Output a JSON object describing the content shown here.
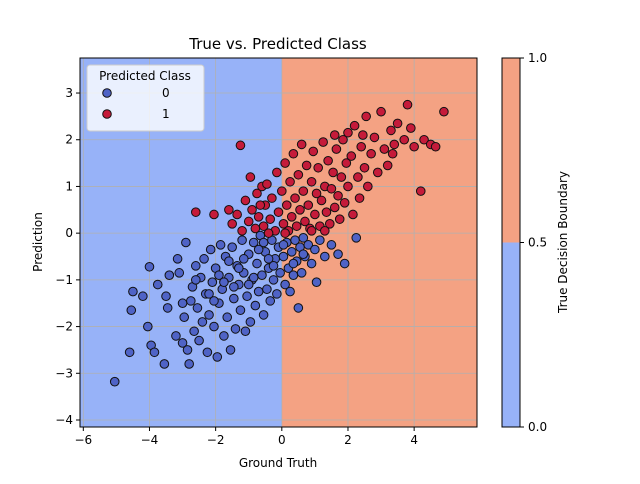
{
  "chart_data": {
    "type": "scatter",
    "title": "True vs. Predicted Class",
    "xlabel": "Ground Truth",
    "ylabel": "Prediction",
    "xlim": [
      -6.1,
      5.9
    ],
    "ylim": [
      -4.15,
      3.75
    ],
    "xticks": [
      -6,
      -4,
      -2,
      0,
      2,
      4
    ],
    "yticks": [
      -4,
      -3,
      -2,
      -1,
      0,
      1,
      2,
      3
    ],
    "grid": true,
    "background_regions": [
      {
        "x_from": -6.1,
        "x_to": 0,
        "class": 0,
        "color": "#97b2f8"
      },
      {
        "x_from": 0,
        "x_to": 5.9,
        "class": 1,
        "color": "#f4a283"
      }
    ],
    "legend": {
      "title": "Predicted Class",
      "placement": "top-left",
      "entries": [
        {
          "label": "0",
          "color": "#4f63c6"
        },
        {
          "label": "1",
          "color": "#c51b3a"
        }
      ]
    },
    "colorbar": {
      "label": "True Decision Boundary",
      "ticks": [
        "0.0",
        "0.5",
        "1.0"
      ],
      "tick_values": [
        0,
        0.5,
        1
      ],
      "bands": [
        {
          "from": 0,
          "to": 0.5,
          "color": "#97b2f8"
        },
        {
          "from": 0.5,
          "to": 1,
          "color": "#f4a283"
        }
      ]
    },
    "series": [
      {
        "name": "0",
        "color": "#4f63c6",
        "points": [
          [
            -5.05,
            -3.18
          ],
          [
            -4.6,
            -2.55
          ],
          [
            -4.55,
            -1.65
          ],
          [
            -4.5,
            -1.25
          ],
          [
            -4.2,
            -1.35
          ],
          [
            -4.05,
            -2.0
          ],
          [
            -4.0,
            -0.72
          ],
          [
            -3.95,
            -2.4
          ],
          [
            -3.85,
            -2.55
          ],
          [
            -3.75,
            -1.1
          ],
          [
            -3.55,
            -2.8
          ],
          [
            -3.45,
            -1.6
          ],
          [
            -3.5,
            -1.35
          ],
          [
            -3.2,
            -2.2
          ],
          [
            -3.1,
            -0.85
          ],
          [
            -3.15,
            -0.55
          ],
          [
            -3.0,
            -2.35
          ],
          [
            -2.95,
            -1.8
          ],
          [
            -2.85,
            -2.5
          ],
          [
            -2.9,
            -0.2
          ],
          [
            -2.8,
            -2.8
          ],
          [
            -2.75,
            -1.45
          ],
          [
            -2.7,
            -1.15
          ],
          [
            -2.65,
            -2.1
          ],
          [
            -2.6,
            -0.7
          ],
          [
            -2.55,
            -1.6
          ],
          [
            -2.5,
            -2.3
          ],
          [
            -2.45,
            -0.95
          ],
          [
            -2.4,
            -1.9
          ],
          [
            -2.35,
            -0.55
          ],
          [
            -2.3,
            -1.3
          ],
          [
            -2.25,
            -2.55
          ],
          [
            -2.2,
            -1.75
          ],
          [
            -2.15,
            -0.35
          ],
          [
            -2.1,
            -1.05
          ],
          [
            -2.05,
            -2.0
          ],
          [
            -2.0,
            -0.75
          ],
          [
            -1.95,
            -2.65
          ],
          [
            -1.9,
            -1.5
          ],
          [
            -1.85,
            -0.25
          ],
          [
            -1.8,
            -1.2
          ],
          [
            -1.75,
            -2.2
          ],
          [
            -1.7,
            -0.5
          ],
          [
            -1.65,
            -1.8
          ],
          [
            -1.6,
            -0.95
          ],
          [
            -1.55,
            -2.5
          ],
          [
            -1.5,
            -0.3
          ],
          [
            -1.45,
            -1.4
          ],
          [
            -1.4,
            -2.05
          ],
          [
            -1.35,
            -0.7
          ],
          [
            -1.3,
            -1.1
          ],
          [
            -1.25,
            -1.65
          ],
          [
            -1.2,
            -0.15
          ],
          [
            -1.15,
            -0.85
          ],
          [
            -1.1,
            -2.1
          ],
          [
            -1.05,
            -1.35
          ],
          [
            -1.0,
            -0.45
          ],
          [
            -0.95,
            -1.9
          ],
          [
            -0.9,
            -1.0
          ],
          [
            -0.85,
            -0.2
          ],
          [
            -0.8,
            -1.55
          ],
          [
            -0.75,
            -0.65
          ],
          [
            -0.7,
            -1.25
          ],
          [
            -0.65,
            -0.05
          ],
          [
            -0.6,
            -0.9
          ],
          [
            -0.55,
            -1.75
          ],
          [
            -0.5,
            -0.4
          ],
          [
            -0.45,
            -1.2
          ],
          [
            -0.4,
            -0.75
          ],
          [
            -0.35,
            -1.45
          ],
          [
            -0.3,
            -0.15
          ],
          [
            -0.25,
            -1.0
          ],
          [
            -0.2,
            -0.55
          ],
          [
            -0.15,
            -1.3
          ],
          [
            -0.1,
            -0.3
          ],
          [
            -0.05,
            -0.85
          ],
          [
            0.05,
            -0.5
          ],
          [
            0.1,
            -1.1
          ],
          [
            0.15,
            -0.2
          ],
          [
            0.2,
            -0.75
          ],
          [
            0.25,
            -1.25
          ],
          [
            0.3,
            -0.4
          ],
          [
            0.35,
            -0.9
          ],
          [
            0.4,
            -0.15
          ],
          [
            0.45,
            -0.6
          ],
          [
            0.5,
            -1.6
          ],
          [
            0.55,
            -0.3
          ],
          [
            0.6,
            -0.85
          ],
          [
            0.65,
            -0.1
          ],
          [
            0.7,
            -0.5
          ],
          [
            0.8,
            -0.25
          ],
          [
            0.9,
            -0.65
          ],
          [
            1.0,
            -0.35
          ],
          [
            1.05,
            -1.05
          ],
          [
            1.15,
            -0.15
          ],
          [
            1.3,
            -0.5
          ],
          [
            1.5,
            -0.25
          ],
          [
            1.7,
            -0.45
          ],
          [
            1.9,
            -0.65
          ],
          [
            2.25,
            -0.1
          ],
          [
            -3.4,
            -0.9
          ],
          [
            -3.0,
            -1.5
          ],
          [
            -2.6,
            -1.0
          ],
          [
            -2.2,
            -1.3
          ],
          [
            -1.9,
            -0.9
          ],
          [
            -1.6,
            -0.6
          ],
          [
            -1.3,
            -0.75
          ],
          [
            -1.0,
            -1.1
          ],
          [
            -0.7,
            -0.35
          ],
          [
            -0.4,
            -0.55
          ],
          [
            -2.05,
            -1.45
          ],
          [
            -1.75,
            -1.05
          ],
          [
            -1.45,
            -1.15
          ],
          [
            -1.15,
            -0.55
          ],
          [
            -0.85,
            -0.95
          ],
          [
            -0.55,
            -0.2
          ],
          [
            -0.25,
            -0.7
          ],
          [
            0.05,
            -0.25
          ],
          [
            0.35,
            -0.65
          ],
          [
            0.65,
            -0.45
          ]
        ]
      },
      {
        "name": "1",
        "color": "#c51b3a",
        "points": [
          [
            -2.6,
            0.45
          ],
          [
            -2.05,
            0.4
          ],
          [
            -1.25,
            1.88
          ],
          [
            -1.6,
            0.5
          ],
          [
            -1.5,
            0.2
          ],
          [
            -1.35,
            0.4
          ],
          [
            -1.2,
            0.05
          ],
          [
            -1.1,
            0.7
          ],
          [
            -1.0,
            0.25
          ],
          [
            -0.95,
            1.2
          ],
          [
            -0.9,
            0.5
          ],
          [
            -0.8,
            0.1
          ],
          [
            -0.75,
            0.85
          ],
          [
            -0.7,
            0.35
          ],
          [
            -0.6,
            1.0
          ],
          [
            -0.55,
            0.15
          ],
          [
            -0.5,
            0.6
          ],
          [
            -0.45,
            1.05
          ],
          [
            -0.35,
            0.3
          ],
          [
            -0.3,
            0.75
          ],
          [
            -0.2,
            0.05
          ],
          [
            -0.15,
            1.3
          ],
          [
            -0.1,
            0.45
          ],
          [
            0.0,
            0.9
          ],
          [
            0.05,
            0.2
          ],
          [
            0.1,
            1.5
          ],
          [
            0.15,
            0.6
          ],
          [
            0.2,
            0.05
          ],
          [
            0.25,
            1.1
          ],
          [
            0.3,
            0.35
          ],
          [
            0.35,
            1.7
          ],
          [
            0.4,
            0.75
          ],
          [
            0.45,
            0.15
          ],
          [
            0.5,
            1.25
          ],
          [
            0.55,
            0.5
          ],
          [
            0.6,
            1.9
          ],
          [
            0.65,
            0.9
          ],
          [
            0.7,
            0.25
          ],
          [
            0.75,
            1.45
          ],
          [
            0.8,
            0.6
          ],
          [
            0.85,
            0.1
          ],
          [
            0.9,
            1.1
          ],
          [
            0.95,
            1.75
          ],
          [
            1.0,
            0.4
          ],
          [
            1.05,
            0.85
          ],
          [
            1.1,
            1.4
          ],
          [
            1.15,
            0.15
          ],
          [
            1.2,
            0.7
          ],
          [
            1.25,
            1.95
          ],
          [
            1.3,
            1.0
          ],
          [
            1.35,
            0.45
          ],
          [
            1.4,
            1.55
          ],
          [
            1.45,
            0.2
          ],
          [
            1.5,
            0.95
          ],
          [
            1.55,
            1.3
          ],
          [
            1.6,
            0.55
          ],
          [
            1.65,
            1.8
          ],
          [
            1.7,
            0.8
          ],
          [
            1.75,
            0.3
          ],
          [
            1.8,
            1.2
          ],
          [
            1.85,
            2.0
          ],
          [
            1.9,
            0.65
          ],
          [
            1.95,
            1.5
          ],
          [
            2.0,
            1.0
          ],
          [
            2.1,
            1.65
          ],
          [
            2.15,
            0.4
          ],
          [
            2.2,
            2.3
          ],
          [
            2.3,
            1.2
          ],
          [
            2.35,
            0.75
          ],
          [
            2.4,
            1.85
          ],
          [
            2.5,
            1.4
          ],
          [
            2.55,
            2.5
          ],
          [
            2.6,
            1.0
          ],
          [
            2.7,
            1.7
          ],
          [
            2.8,
            2.05
          ],
          [
            2.9,
            1.3
          ],
          [
            3.0,
            2.6
          ],
          [
            3.1,
            1.8
          ],
          [
            3.2,
            1.45
          ],
          [
            3.3,
            2.2
          ],
          [
            3.4,
            1.9
          ],
          [
            3.5,
            2.35
          ],
          [
            3.7,
            2.0
          ],
          [
            3.8,
            2.75
          ],
          [
            3.9,
            2.25
          ],
          [
            4.0,
            1.85
          ],
          [
            4.2,
            0.9
          ],
          [
            4.3,
            2.0
          ],
          [
            4.5,
            1.9
          ],
          [
            4.65,
            1.85
          ],
          [
            4.9,
            2.6
          ],
          [
            1.6,
            2.1
          ],
          [
            2.0,
            2.15
          ],
          [
            2.45,
            2.1
          ],
          [
            3.35,
            1.7
          ],
          [
            -0.4,
            0.0
          ],
          [
            0.1,
            0.0
          ],
          [
            0.9,
            0.05
          ],
          [
            1.3,
            0.05
          ],
          [
            -0.65,
            0.6
          ]
        ]
      }
    ]
  }
}
